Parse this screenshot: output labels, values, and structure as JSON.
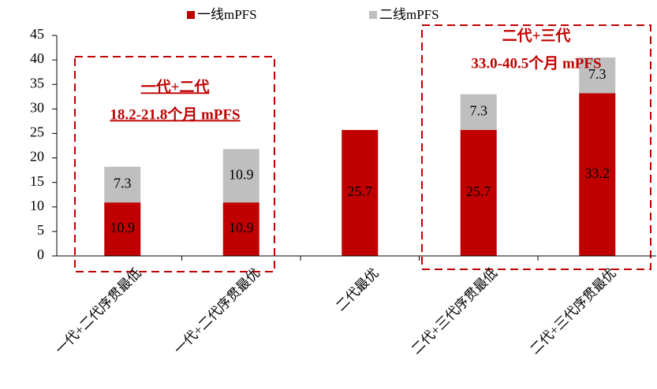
{
  "chart_data": {
    "type": "bar",
    "stacked": true,
    "categories": [
      "一代+二代序贯最低",
      "一代+二代序贯最优",
      "二代最优",
      "二代+三代序贯最低",
      "二代+三代序贯最优"
    ],
    "series": [
      {
        "name": "一线mPFS",
        "color": "#c00000",
        "values": [
          10.9,
          10.9,
          25.7,
          25.7,
          33.2
        ]
      },
      {
        "name": "二线mPFS",
        "color": "#bfbfbf",
        "values": [
          7.3,
          10.9,
          null,
          7.3,
          7.3
        ]
      }
    ],
    "ylim": [
      0,
      45
    ],
    "yticks": [
      0,
      5,
      10,
      15,
      20,
      25,
      30,
      35,
      40,
      45
    ],
    "annotations": [
      {
        "title": "一代+二代",
        "text": "18.2-21.8个月 mPFS"
      },
      {
        "title": "二代+三代",
        "text": "33.0-40.5个月 mPFS"
      }
    ]
  }
}
